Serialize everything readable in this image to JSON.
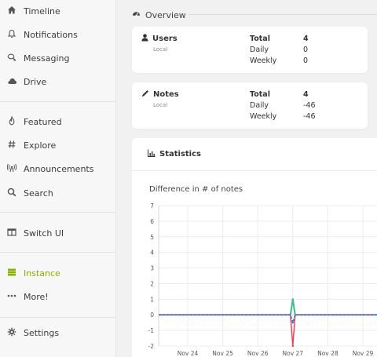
{
  "sidebar": {
    "items": [
      {
        "label": "Timeline",
        "icon": "home-icon"
      },
      {
        "label": "Notifications",
        "icon": "bell-icon"
      },
      {
        "label": "Messaging",
        "icon": "comments-icon"
      },
      {
        "label": "Drive",
        "icon": "cloud-icon"
      },
      {
        "label": "Featured",
        "icon": "fire-icon"
      },
      {
        "label": "Explore",
        "icon": "hashtag-icon"
      },
      {
        "label": "Announcements",
        "icon": "broadcast-icon"
      },
      {
        "label": "Search",
        "icon": "search-icon"
      },
      {
        "label": "Switch UI",
        "icon": "columns-icon"
      },
      {
        "label": "Instance",
        "icon": "server-icon",
        "active": true
      },
      {
        "label": "More!",
        "icon": "ellipsis-icon"
      },
      {
        "label": "Settings",
        "icon": "cog-icon"
      }
    ],
    "active_color": "#86b300"
  },
  "overview": {
    "title": "Overview",
    "users": {
      "title": "Users",
      "sub": "Local",
      "total_label": "Total",
      "total": "4",
      "daily_label": "Daily",
      "daily": "0",
      "weekly_label": "Weekly",
      "weekly": "0"
    },
    "notes": {
      "title": "Notes",
      "sub": "Local",
      "total_label": "Total",
      "total": "4",
      "daily_label": "Daily",
      "daily": "-46",
      "weekly_label": "Weekly",
      "weekly": "-46"
    }
  },
  "statistics": {
    "title": "Statistics",
    "selected_chart": "Difference in # of notes"
  },
  "chart_data": {
    "type": "line",
    "title": "",
    "xlabel": "",
    "ylabel": "",
    "x_ticks": [
      "Nov 24",
      "Nov 25",
      "Nov 26",
      "Nov 27",
      "Nov 28",
      "Nov 29"
    ],
    "y_ticks": [
      7,
      6,
      5,
      4,
      3,
      2,
      1,
      0,
      -1,
      -2
    ],
    "ylim": [
      -2,
      7
    ],
    "grid": true,
    "series": [
      {
        "color": "#3bbf8a",
        "x": [
          "Nov 24",
          "Nov 25",
          "Nov 26",
          "Nov 27",
          "Nov 28",
          "Nov 29"
        ],
        "values": [
          0,
          0,
          0,
          1,
          0,
          0
        ]
      },
      {
        "color": "#f0425a",
        "x": [
          "Nov 24",
          "Nov 25",
          "Nov 26",
          "Nov 27",
          "Nov 28",
          "Nov 29"
        ],
        "values": [
          0,
          0,
          0,
          -2,
          0,
          0
        ]
      },
      {
        "color": "#1e6fd0",
        "x": [
          "Nov 24",
          "Nov 25",
          "Nov 26",
          "Nov 27",
          "Nov 28",
          "Nov 29"
        ],
        "values": [
          0,
          0,
          0,
          -0.5,
          0,
          0
        ]
      }
    ]
  }
}
